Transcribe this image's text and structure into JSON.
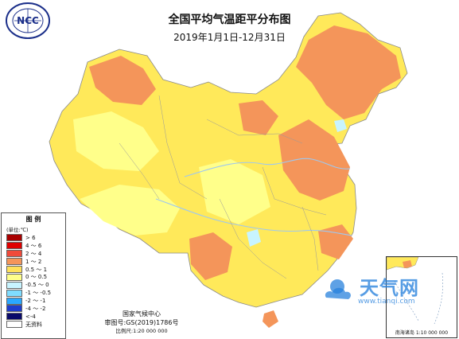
{
  "title": "全国平均气温距平分布图",
  "date_range": "2019年1月1日-12月31日",
  "logo_text": "NCC",
  "legend": {
    "title": "图  例",
    "unit": "(单位:℃)",
    "items": [
      {
        "label": "> 6",
        "color": "#a80000"
      },
      {
        "label": "4 ～ 6",
        "color": "#e00000"
      },
      {
        "label": "2 ～ 4",
        "color": "#f04a3a"
      },
      {
        "label": "1 ～ 2",
        "color": "#f4955a"
      },
      {
        "label": "0.5 ～ 1",
        "color": "#ffe15a"
      },
      {
        "label": "0 ～ 0.5",
        "color": "#ffff8a"
      },
      {
        "label": "-0.5 ～ 0",
        "color": "#c8f4ff"
      },
      {
        "label": "-1 ～ -0.5",
        "color": "#7fdcff"
      },
      {
        "label": "-2 ～ -1",
        "color": "#2aa8ff"
      },
      {
        "label": "-4 ～ -2",
        "color": "#1e3ccd"
      },
      {
        "label": "<-4",
        "color": "#0a0a6a"
      },
      {
        "label": "无资料",
        "color": "#ffffff"
      }
    ]
  },
  "credits": {
    "center": "国家气候中心",
    "review": "审图号:GS(2019)1786号",
    "scale": "比例尺:1:20 000 000"
  },
  "inset": {
    "label": "南海诸岛",
    "scale": "1:10 000 000"
  },
  "watermark": {
    "text": "天气网",
    "url": "www.tianqi.com"
  },
  "colors": {
    "map_base": "#ffe95a",
    "warm": "#f4955a",
    "border": "#8a8a8a",
    "river": "#9ec8f0",
    "pale": "#ffff8a"
  }
}
